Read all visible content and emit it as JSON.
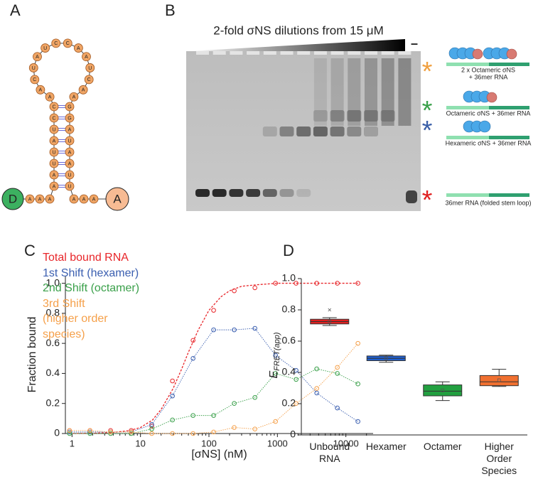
{
  "panels": {
    "a": "A",
    "b": "B",
    "c": "C",
    "d": "D"
  },
  "hairpin": {
    "donor": "D",
    "acceptor": "A",
    "tail_left": [
      "A",
      "A",
      "A"
    ],
    "stem_left": [
      "C",
      "C",
      "U",
      "A",
      "U",
      "U",
      "A",
      "A"
    ],
    "loop": [
      "A",
      "A",
      "C",
      "U",
      "A",
      "U",
      "C",
      "C",
      "A",
      "A",
      "U",
      "C",
      "A",
      "A"
    ],
    "stem_right": [
      "G",
      "G",
      "A",
      "U",
      "A",
      "A",
      "U",
      "U"
    ],
    "tail_right": [
      "A",
      "A",
      "A"
    ]
  },
  "gel": {
    "title": "2-fold σNS dilutions from 15 μM",
    "control_lane": "–",
    "species": [
      {
        "marker": "*",
        "color": "#f0a040",
        "label_lines": [
          "2 x Octameric σNS",
          "+ 36mer RNA"
        ]
      },
      {
        "marker": "*",
        "color": "#3aa04a",
        "label_lines": [
          "Octameric σNS + 36mer RNA"
        ]
      },
      {
        "marker": "*",
        "color": "#3a5fa8",
        "label_lines": [
          "Hexameric σNS + 36mer RNA"
        ]
      },
      {
        "marker": "*",
        "color": "#e02020",
        "label_lines": [
          "36mer RNA (folded stem loop)"
        ]
      }
    ]
  },
  "chart_data": [
    {
      "type": "line",
      "x_label": "[σNS] (nM)",
      "y_label": "Fraction bound",
      "log_x": true,
      "x": [
        0.92,
        1.83,
        3.66,
        7.32,
        14.6,
        29.3,
        58.6,
        117,
        234,
        469,
        938,
        1875,
        3750,
        7500,
        15000
      ],
      "xlim": [
        0.8,
        25000
      ],
      "xticks": [
        1,
        10,
        100,
        1000,
        10000
      ],
      "ylim": [
        0,
        1.05
      ],
      "yticks": [
        0,
        0.2,
        0.4,
        0.6,
        0.8,
        {
          "value": 1,
          "label": "1.0"
        }
      ],
      "series": [
        {
          "name": "Total bound RNA",
          "color": "#e8262a",
          "connected": false,
          "values": [
            0.02,
            0.02,
            0.02,
            0.02,
            0.05,
            0.35,
            0.62,
            0.82,
            0.95,
            0.97,
            1.0,
            1.0,
            1.0,
            1.0,
            1.0
          ],
          "fit_x": [
            0.92,
            2,
            4,
            7,
            10,
            15,
            20,
            30,
            40,
            50,
            70,
            100,
            150,
            200,
            300,
            500,
            1000,
            3000,
            15000
          ],
          "fit_values": [
            0.0,
            0.002,
            0.007,
            0.02,
            0.04,
            0.09,
            0.16,
            0.3,
            0.43,
            0.54,
            0.69,
            0.82,
            0.91,
            0.95,
            0.98,
            0.99,
            1.0,
            1.0,
            1.0
          ]
        },
        {
          "name": "1st Shift (hexamer)",
          "color": "#3b5fb0",
          "connected": true,
          "values": [
            0.01,
            0.01,
            0.01,
            0.01,
            0.06,
            0.25,
            0.5,
            0.69,
            0.69,
            0.7,
            0.52,
            0.42,
            0.27,
            0.17,
            0.08
          ]
        },
        {
          "name": "2nd Shift (octamer)",
          "color": "#3aa04a",
          "connected": true,
          "values": [
            0.0,
            0.0,
            0.0,
            0.0,
            0.03,
            0.09,
            0.12,
            0.12,
            0.2,
            0.24,
            0.4,
            0.36,
            0.43,
            0.4,
            0.33
          ]
        },
        {
          "name": "3rd Shift (higher order species)",
          "color": "#f5a04a",
          "connected": true,
          "values": [
            0.02,
            0.02,
            0.01,
            0.01,
            0.0,
            0.0,
            0.0,
            0.01,
            0.04,
            0.03,
            0.08,
            0.2,
            0.3,
            0.44,
            0.6
          ]
        }
      ]
    },
    {
      "type": "box",
      "y_label": "E",
      "y_label_subscript": "FRET(app)",
      "categories": [
        "Unbound RNA",
        "Hexamer",
        "Octamer",
        "Higher Order Species"
      ],
      "colors": [
        "#e02020",
        "#1f5fcf",
        "#22a040",
        "#f07030"
      ],
      "ylim": [
        0,
        1.0
      ],
      "yticks": [
        0,
        0.2,
        0.4,
        0.6,
        0.8,
        {
          "value": 1.0,
          "label": "1.0"
        }
      ],
      "boxes": [
        {
          "whisker_low": 0.7,
          "q1": 0.71,
          "median": 0.725,
          "q3": 0.74,
          "whisker_high": 0.75,
          "mean": 0.725,
          "outliers": [
            0.8
          ]
        },
        {
          "whisker_low": 0.465,
          "q1": 0.475,
          "median": 0.49,
          "q3": 0.505,
          "whisker_high": 0.51,
          "mean": 0.49,
          "outliers": []
        },
        {
          "whisker_low": 0.22,
          "q1": 0.25,
          "median": 0.28,
          "q3": 0.32,
          "whisker_high": 0.34,
          "mean": 0.285,
          "outliers": []
        },
        {
          "whisker_low": 0.31,
          "q1": 0.315,
          "median": 0.34,
          "q3": 0.38,
          "whisker_high": 0.42,
          "mean": 0.35,
          "outliers": []
        }
      ]
    }
  ]
}
